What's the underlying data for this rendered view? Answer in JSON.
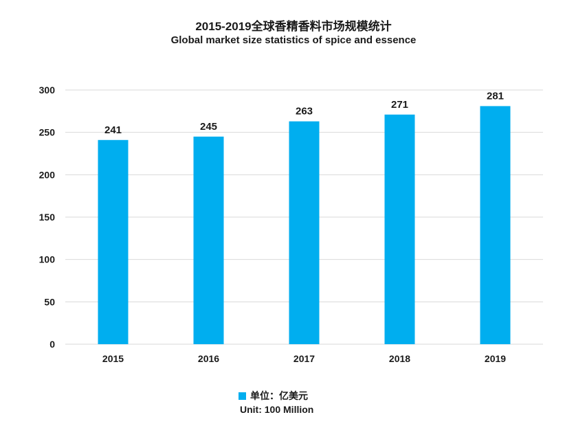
{
  "chart_data": {
    "type": "bar",
    "title": "2015-2019全球香精香料市场规模统计",
    "subtitle": "Global market size statistics of spice and essence",
    "categories": [
      "2015",
      "2016",
      "2017",
      "2018",
      "2019"
    ],
    "series": [
      {
        "name": "单位：亿美元",
        "values": [
          241,
          245,
          263,
          271,
          281
        ]
      }
    ],
    "data_labels": [
      "241",
      "245",
      "263",
      "271",
      "281"
    ],
    "y_ticks": [
      "0",
      "50",
      "100",
      "150",
      "200",
      "250",
      "300"
    ],
    "ylim": [
      0,
      300
    ],
    "grid": true,
    "legend": {
      "placement": "bottom-center",
      "label": "单位：亿美元",
      "sublabel": "Unit: 100 Million"
    },
    "colors": {
      "bar": "#00aeef",
      "grid": "#d9d9d9"
    }
  }
}
